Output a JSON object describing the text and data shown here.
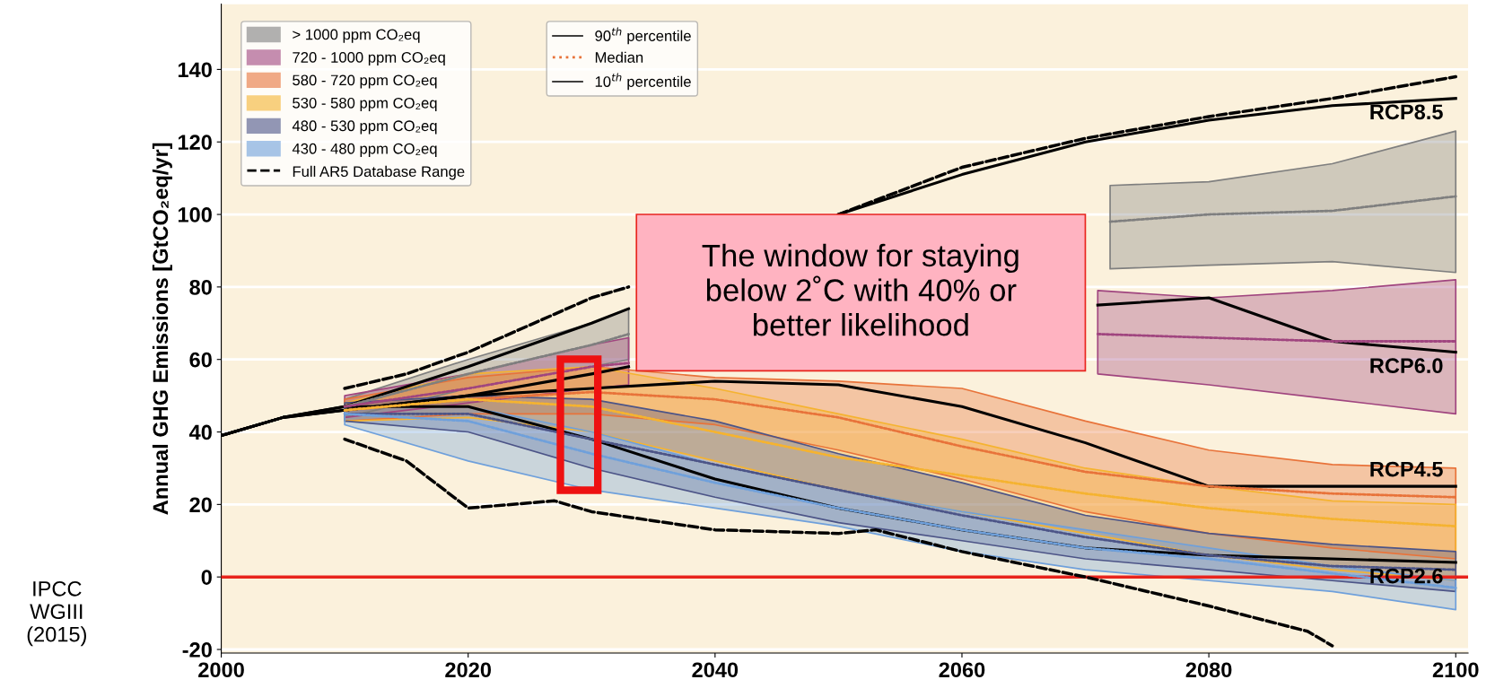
{
  "chart_data": {
    "type": "line",
    "ylabel": "Annual GHG Emissions [GtCO₂eq/yr]",
    "xlim": [
      2000,
      2101
    ],
    "ylim": [
      -21,
      158
    ],
    "xticks": [
      2000,
      2020,
      2040,
      2060,
      2080,
      2100
    ],
    "yticks": [
      -20,
      0,
      20,
      40,
      60,
      80,
      100,
      120,
      140
    ],
    "grid": "y",
    "legend": "top left",
    "marker": "none",
    "series": [
      {
        "name": "> 1000 ppm CO₂eq",
        "color": "#7f7f7f",
        "line_style": "dotted",
        "x": [
          2010,
          2020,
          2030,
          2033,
          2040,
          2050,
          2060,
          2070,
          2072,
          2080,
          2090,
          2100
        ],
        "values": [
          47,
          56,
          64,
          67,
          null,
          null,
          null,
          null,
          98,
          100,
          101,
          105
        ],
        "lower": [
          44,
          52,
          58,
          60,
          null,
          null,
          null,
          null,
          85,
          86,
          87,
          84
        ],
        "upper": [
          49,
          60,
          70,
          74,
          null,
          null,
          null,
          null,
          108,
          109,
          114,
          123
        ]
      },
      {
        "name": "720 - 1000 ppm CO₂eq",
        "color": "#a0457f",
        "line_style": "dotted",
        "x": [
          2010,
          2020,
          2030,
          2033,
          2040,
          2050,
          2060,
          2070,
          2071,
          2080,
          2090,
          2100
        ],
        "values": [
          47,
          52,
          58,
          59,
          null,
          null,
          null,
          null,
          67,
          66,
          65,
          65
        ],
        "lower": [
          44,
          48,
          52,
          53,
          null,
          null,
          null,
          null,
          56,
          53,
          49,
          45
        ],
        "upper": [
          50,
          56,
          64,
          66,
          null,
          null,
          null,
          null,
          79,
          77,
          79,
          82
        ]
      },
      {
        "name": "580 - 720 ppm CO₂eq",
        "color": "#e8733a",
        "line_style": "dotted",
        "x": [
          2010,
          2020,
          2030,
          2040,
          2050,
          2060,
          2070,
          2080,
          2090,
          2100
        ],
        "values": [
          46,
          49,
          51,
          49,
          44,
          36,
          29,
          25,
          23,
          22
        ],
        "lower": [
          43,
          45,
          45,
          42,
          35,
          27,
          18,
          12,
          8,
          5
        ],
        "upper": [
          49,
          55,
          58,
          55,
          54,
          52,
          43,
          35,
          31,
          30
        ]
      },
      {
        "name": "530 - 580 ppm CO₂eq",
        "color": "#f5b330",
        "line_style": "dotted",
        "x": [
          2010,
          2020,
          2030,
          2040,
          2050,
          2060,
          2070,
          2080,
          2090,
          2100
        ],
        "values": [
          46,
          49,
          47,
          40,
          33,
          28,
          23,
          19,
          16,
          14
        ],
        "lower": [
          43,
          44,
          40,
          32,
          24,
          18,
          12,
          6,
          2,
          -1
        ],
        "upper": [
          48,
          56,
          58,
          52,
          45,
          38,
          30,
          25,
          21,
          20
        ]
      },
      {
        "name": "480 - 530 ppm CO₂eq",
        "color": "#4c5487",
        "line_style": "dotted",
        "x": [
          2010,
          2020,
          2030,
          2040,
          2050,
          2060,
          2070,
          2080,
          2090,
          2100
        ],
        "values": [
          45,
          45,
          38,
          31,
          24,
          17,
          11,
          6,
          3,
          2
        ],
        "lower": [
          43,
          40,
          30,
          22,
          15,
          10,
          5,
          2,
          -1,
          -4
        ],
        "upper": [
          48,
          50,
          49,
          43,
          34,
          26,
          17,
          12,
          9,
          7
        ]
      },
      {
        "name": "430 - 480 ppm CO₂eq",
        "color": "#6fa0db",
        "line_style": "dotted",
        "x": [
          2010,
          2020,
          2030,
          2040,
          2050,
          2060,
          2070,
          2080,
          2090,
          2100
        ],
        "values": [
          45,
          43,
          34,
          26,
          19,
          13,
          8,
          5,
          1,
          -3
        ],
        "lower": [
          42,
          32,
          24,
          19,
          14,
          7,
          2,
          -1,
          -4,
          -9
        ],
        "upper": [
          47,
          47,
          40,
          31,
          24,
          18,
          13,
          8,
          3,
          -1
        ]
      },
      {
        "name": "Full AR5 Database Range",
        "color": "#000000",
        "line_style": "dashed",
        "x": [
          2010,
          2015,
          2020,
          2030,
          2033,
          2040,
          2050,
          2060,
          2070,
          2080,
          2090,
          2100
        ],
        "values": [
          52,
          56,
          62,
          77,
          80,
          null,
          100,
          113,
          121,
          127,
          132,
          138
        ]
      },
      {
        "color": "#000000",
        "line_style": "dashed",
        "x": [
          2010,
          2015,
          2020,
          2027,
          2030,
          2040,
          2050,
          2053,
          2060,
          2070,
          2080,
          2088,
          2090
        ],
        "values": [
          38,
          32,
          19,
          21,
          18,
          13,
          12,
          13,
          7,
          0,
          -8,
          -15,
          -19
        ]
      },
      {
        "name": "RCP8.5",
        "color": "#000000",
        "line_style": "solid",
        "x": [
          2000,
          2005,
          2010,
          2020,
          2030,
          2033,
          2040,
          2050,
          2060,
          2070,
          2080,
          2090,
          2100
        ],
        "values": [
          39,
          44,
          47,
          58,
          70,
          74,
          null,
          100,
          111,
          120,
          126,
          130,
          132
        ]
      },
      {
        "name": "RCP6.0",
        "color": "#000000",
        "line_style": "solid",
        "x": [
          2000,
          2005,
          2010,
          2020,
          2030,
          2033,
          2040,
          2050,
          2060,
          2070,
          2071,
          2080,
          2090,
          2100
        ],
        "values": [
          39,
          44,
          46,
          50,
          56,
          58,
          null,
          null,
          null,
          null,
          75,
          77,
          65,
          62
        ]
      },
      {
        "name": "RCP4.5",
        "color": "#000000",
        "line_style": "solid",
        "x": [
          2000,
          2005,
          2010,
          2020,
          2030,
          2040,
          2050,
          2060,
          2070,
          2080,
          2090,
          2100
        ],
        "values": [
          39,
          44,
          46,
          50,
          52,
          54,
          53,
          47,
          37,
          25,
          25,
          25
        ]
      },
      {
        "name": "RCP2.6",
        "color": "#000000",
        "line_style": "solid",
        "x": [
          2000,
          2005,
          2010,
          2020,
          2030,
          2040,
          2050,
          2060,
          2070,
          2080,
          2090,
          2100
        ],
        "values": [
          39,
          44,
          47,
          47,
          38,
          27,
          19,
          13,
          8,
          6,
          5,
          4
        ]
      }
    ],
    "ref_lines": [
      {
        "axis": "y",
        "value": 0,
        "color": "#e8241c"
      }
    ],
    "annotations": [
      "The window for staying\nbelow 2˚C with 40% or\nbetter likelihood",
      "90$^{th}$ percentile",
      "Median",
      "10$^{th}$ percentile",
      "IPCC\nWGIII\n(2015)"
    ]
  }
}
